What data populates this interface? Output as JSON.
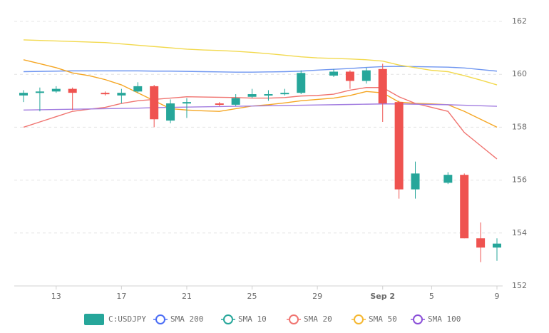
{
  "chart_data": {
    "type": "candlestick",
    "categories": [
      null,
      null,
      "13",
      null,
      null,
      null,
      "17",
      null,
      null,
      null,
      "21",
      null,
      null,
      null,
      "25",
      null,
      null,
      null,
      "29",
      null,
      null,
      null,
      "Sep 2",
      null,
      null,
      "5",
      null,
      null,
      null,
      "9"
    ],
    "open": [
      159.2,
      159.3,
      159.35,
      159.45,
      null,
      159.3,
      159.2,
      159.35,
      159.55,
      158.25,
      158.9,
      null,
      158.9,
      158.85,
      159.15,
      159.2,
      159.25,
      159.3,
      null,
      159.95,
      160.1,
      159.75,
      160.2,
      158.95,
      155.65,
      null,
      155.9,
      156.2,
      153.8,
      153.45
    ],
    "high": [
      159.4,
      159.5,
      159.55,
      159.5,
      null,
      159.35,
      159.45,
      159.7,
      159.6,
      159.05,
      159.1,
      null,
      158.95,
      159.25,
      159.45,
      159.4,
      159.45,
      160.15,
      null,
      160.2,
      160.15,
      160.25,
      160.4,
      159.0,
      156.7,
      null,
      156.3,
      156.25,
      154.4,
      153.8
    ],
    "low": [
      158.95,
      158.6,
      159.3,
      158.65,
      null,
      159.2,
      158.9,
      159.3,
      158.0,
      158.15,
      158.35,
      null,
      158.8,
      158.8,
      159.1,
      159.0,
      159.2,
      159.25,
      null,
      159.9,
      159.45,
      159.65,
      158.2,
      155.3,
      155.3,
      null,
      155.85,
      153.8,
      152.9,
      152.95
    ],
    "close": [
      159.3,
      159.35,
      159.45,
      159.3,
      null,
      159.25,
      159.3,
      159.55,
      158.3,
      158.9,
      158.95,
      null,
      158.85,
      159.1,
      159.25,
      159.25,
      159.3,
      160.05,
      null,
      160.1,
      159.75,
      160.15,
      158.9,
      155.65,
      156.25,
      null,
      156.2,
      153.8,
      153.45,
      153.6
    ],
    "name": "C:USDJPY",
    "up_color": "#26a69a",
    "down_color": "#ef5350",
    "series": [
      {
        "name": "SMA 200",
        "color": "#4c6ef5",
        "line_color": "#6f96f0",
        "values": [
          160.1,
          160.11,
          160.12,
          160.13,
          160.13,
          160.13,
          160.13,
          160.13,
          160.12,
          160.12,
          160.11,
          160.1,
          160.09,
          160.08,
          160.08,
          160.09,
          160.1,
          160.12,
          160.16,
          160.19,
          160.22,
          160.26,
          160.29,
          160.3,
          160.29,
          160.28,
          160.27,
          160.24,
          160.18,
          160.12
        ]
      },
      {
        "name": "SMA 10",
        "color": "#26a69a",
        "line_color": "#f5a623",
        "values": [
          160.55,
          160.4,
          160.25,
          160.05,
          159.95,
          159.8,
          159.6,
          159.3,
          159.0,
          158.7,
          158.65,
          158.62,
          158.6,
          158.7,
          158.8,
          158.85,
          158.92,
          159.0,
          159.05,
          159.1,
          159.2,
          159.35,
          159.3,
          158.95,
          158.9,
          158.88,
          158.85,
          158.6,
          158.3,
          158.0
        ]
      },
      {
        "name": "SMA 20",
        "color": "#f07470",
        "line_color": "#f07470",
        "values": [
          158.0,
          158.2,
          158.4,
          158.6,
          158.68,
          158.75,
          158.9,
          159.0,
          159.05,
          159.1,
          159.15,
          159.14,
          159.13,
          159.12,
          159.1,
          159.1,
          159.12,
          159.18,
          159.2,
          159.25,
          159.4,
          159.5,
          159.5,
          159.15,
          158.9,
          158.75,
          158.6,
          157.8,
          157.3,
          156.8
        ]
      },
      {
        "name": "SMA 50",
        "color": "#f5b731",
        "line_color": "#f2d94e",
        "values": [
          161.3,
          161.28,
          161.26,
          161.24,
          161.22,
          161.2,
          161.15,
          161.1,
          161.05,
          161.0,
          160.95,
          160.92,
          160.9,
          160.87,
          160.83,
          160.78,
          160.72,
          160.66,
          160.62,
          160.6,
          160.58,
          160.55,
          160.5,
          160.35,
          160.25,
          160.15,
          160.1,
          159.95,
          159.78,
          159.6
        ]
      },
      {
        "name": "SMA 100",
        "color": "#8a4fd8",
        "line_color": "#a27de0",
        "values": [
          158.65,
          158.66,
          158.67,
          158.68,
          158.69,
          158.7,
          158.71,
          158.72,
          158.74,
          158.75,
          158.76,
          158.77,
          158.78,
          158.79,
          158.8,
          158.81,
          158.82,
          158.83,
          158.84,
          158.85,
          158.86,
          158.87,
          158.88,
          158.88,
          158.87,
          158.86,
          158.85,
          158.83,
          158.81,
          158.79
        ]
      }
    ],
    "ylim": [
      152,
      162
    ],
    "yticks": [
      152,
      154,
      156,
      158,
      160,
      162
    ],
    "grid": true
  }
}
